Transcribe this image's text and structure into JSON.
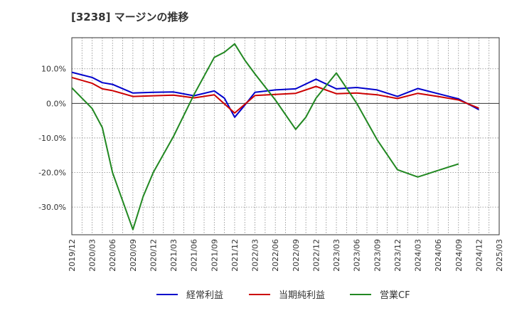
{
  "chart_data": {
    "type": "line",
    "title": "[3238]  マージンの推移",
    "xlabel": "",
    "ylabel": "",
    "x": [
      "2019/12",
      "2020/03",
      "2020/06",
      "2020/09",
      "2020/12",
      "2021/03",
      "2021/06",
      "2021/09",
      "2021/12",
      "2022/03",
      "2022/06",
      "2022/09",
      "2022/12",
      "2023/03",
      "2023/06",
      "2023/09",
      "2023/12",
      "2024/03",
      "2024/06",
      "2024/09",
      "2024/12",
      "2025/03"
    ],
    "ylim": [
      -38,
      19
    ],
    "yticks": [
      10,
      0,
      -10,
      -20,
      -30
    ],
    "ytick_labels": [
      "10.0%",
      "0.0%",
      "-10.0%",
      "-20.0%",
      "-30.0%"
    ],
    "grid": true,
    "legend_position": "bottom",
    "series": [
      {
        "name": "経常利益",
        "color": "#0000cc",
        "points": [
          [
            "2019/12",
            9.0
          ],
          [
            "2020/03",
            7.5
          ],
          [
            "2020/03+",
            6.0
          ],
          [
            "2020/06",
            5.5
          ],
          [
            "2020/09",
            3.0
          ],
          [
            "2020/12",
            3.2
          ],
          [
            "2021/03",
            3.3
          ],
          [
            "2021/06",
            2.2
          ],
          [
            "2021/09",
            3.6
          ],
          [
            "2021/09+",
            1.5
          ],
          [
            "2021/12",
            -4.0
          ],
          [
            "2021/12+",
            -0.5
          ],
          [
            "2022/03",
            3.2
          ],
          [
            "2022/06",
            3.9
          ],
          [
            "2022/09",
            4.2
          ],
          [
            "2022/12",
            7.0
          ],
          [
            "2023/03",
            4.2
          ],
          [
            "2023/06",
            4.6
          ],
          [
            "2023/09",
            3.9
          ],
          [
            "2023/12",
            2.0
          ],
          [
            "2024/03",
            4.3
          ],
          [
            "2024/06",
            2.8
          ],
          [
            "2024/09",
            1.3
          ],
          [
            "2024/12",
            -1.8
          ]
        ]
      },
      {
        "name": "当期純利益",
        "color": "#cc0000",
        "points": [
          [
            "2019/12",
            7.5
          ],
          [
            "2020/03",
            5.8
          ],
          [
            "2020/03+",
            4.2
          ],
          [
            "2020/06",
            3.7
          ],
          [
            "2020/09",
            2.0
          ],
          [
            "2020/12",
            2.2
          ],
          [
            "2021/03",
            2.4
          ],
          [
            "2021/06",
            1.6
          ],
          [
            "2021/09",
            2.5
          ],
          [
            "2021/12",
            -2.8
          ],
          [
            "2022/03",
            2.3
          ],
          [
            "2022/06",
            2.6
          ],
          [
            "2022/09",
            2.9
          ],
          [
            "2022/12",
            4.9
          ],
          [
            "2023/03",
            2.8
          ],
          [
            "2023/06",
            3.0
          ],
          [
            "2023/09",
            2.5
          ],
          [
            "2023/12",
            1.4
          ],
          [
            "2024/03",
            2.9
          ],
          [
            "2024/06",
            2.0
          ],
          [
            "2024/09",
            1.0
          ],
          [
            "2024/12",
            -1.4
          ]
        ]
      },
      {
        "name": "営業CF",
        "color": "#228822",
        "points": [
          [
            "2019/12",
            4.5
          ],
          [
            "2020/03",
            -1.5
          ],
          [
            "2020/03+",
            -7.0
          ],
          [
            "2020/06",
            -20.0
          ],
          [
            "2020/09",
            -36.5
          ],
          [
            "2020/09+",
            -27.0
          ],
          [
            "2020/12",
            -20.0
          ],
          [
            "2021/03",
            -9.5
          ],
          [
            "2021/06",
            2.5
          ],
          [
            "2021/09",
            13.3
          ],
          [
            "2021/09+",
            14.8
          ],
          [
            "2021/12",
            17.2
          ],
          [
            "2021/12+",
            12.5
          ],
          [
            "2022/03",
            8.5
          ],
          [
            "2022/06",
            1.0
          ],
          [
            "2022/09",
            -7.5
          ],
          [
            "2022/09+",
            -4.0
          ],
          [
            "2022/12",
            1.5
          ],
          [
            "2023/03",
            8.8
          ],
          [
            "2023/06",
            0.0
          ],
          [
            "2023/09",
            -10.5
          ],
          [
            "2023/12",
            -19.2
          ],
          [
            "2024/03",
            -21.3
          ],
          [
            "2024/06",
            -19.4
          ],
          [
            "2024/09",
            -17.5
          ]
        ]
      }
    ]
  }
}
